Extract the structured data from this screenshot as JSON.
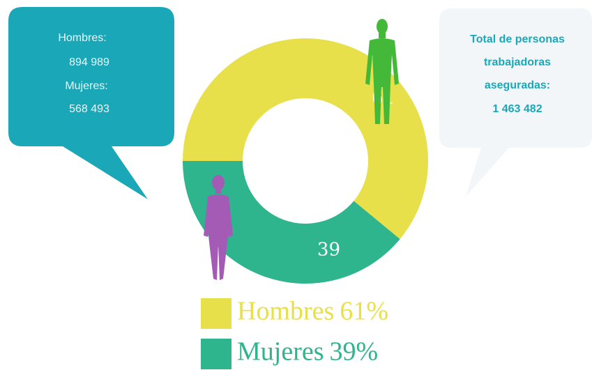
{
  "chart_data": {
    "type": "pie",
    "donut": true,
    "categories": [
      "Hombres",
      "Mujeres"
    ],
    "values": [
      61,
      39
    ],
    "value_labels": [
      "61%",
      "39%"
    ],
    "colors": [
      "#e8e04a",
      "#2fb58d"
    ],
    "annotations": {
      "left": [
        "Hombres:",
        "894 989",
        "Mujeres:",
        "568 493"
      ],
      "right": [
        "Total de personas",
        "trabajadoras",
        "aseguradas:",
        "1 463 482"
      ]
    }
  }
}
